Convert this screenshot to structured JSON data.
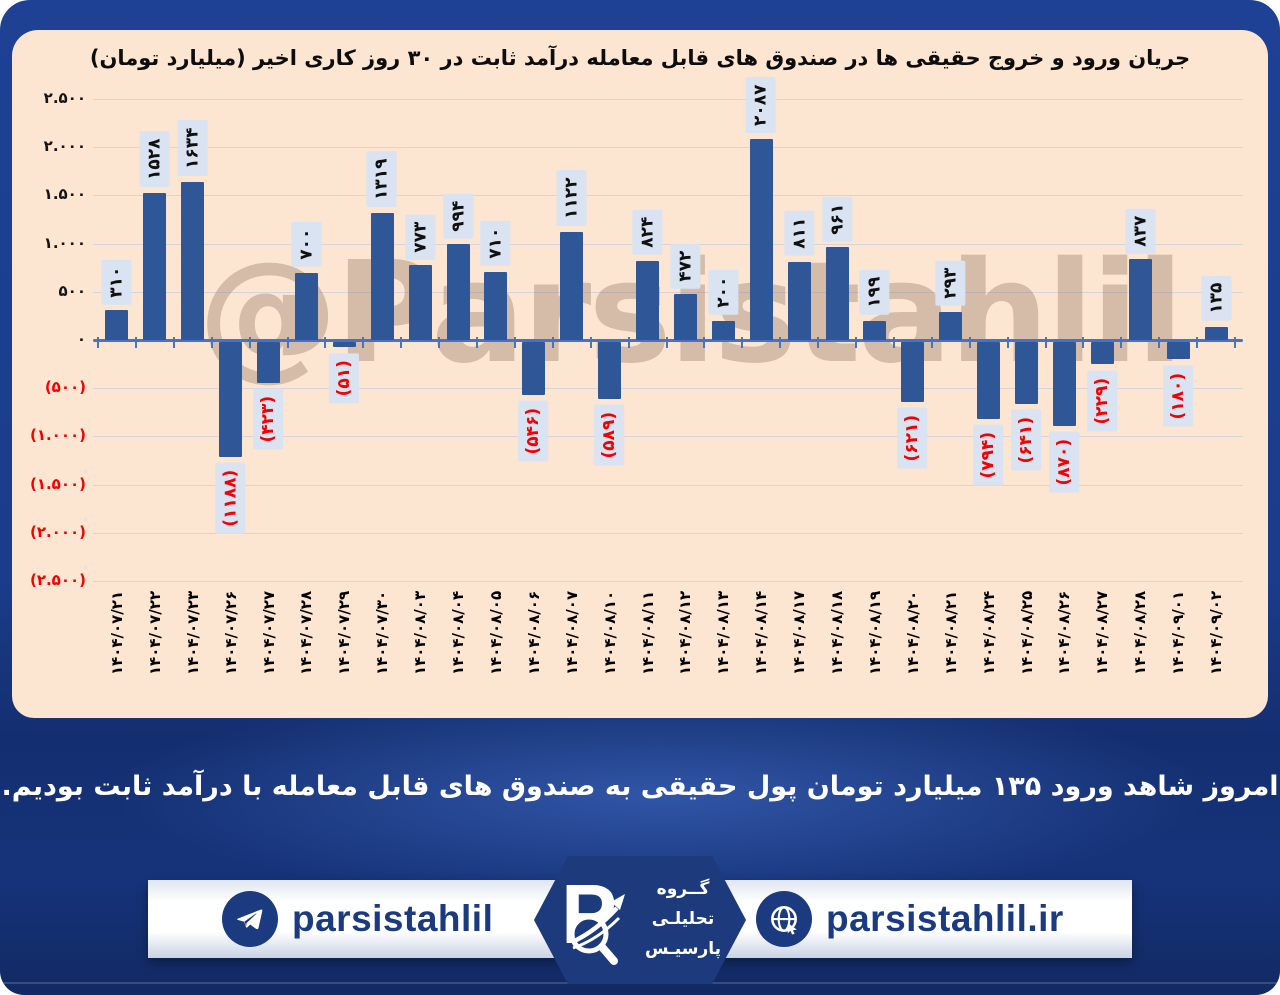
{
  "title": "جریان ورود و خروج حقیقی ها در صندوق های قابل معامله درآمد ثابت در ۳۰ روز کاری اخیر (میلیارد تومان)",
  "watermark": "@Parsistahlil",
  "chart_data": {
    "type": "bar",
    "title": "جریان ورود و خروج حقیقی ها در صندوق های قابل معامله درآمد ثابت در ۳۰ روز کاری اخیر (میلیارد تومان)",
    "unit": "میلیارد تومان",
    "categories": [
      "۱۴۰۴/۰۷/۲۱",
      "۱۴۰۴/۰۷/۲۲",
      "۱۴۰۴/۰۷/۲۳",
      "۱۴۰۴/۰۷/۲۶",
      "۱۴۰۴/۰۷/۲۷",
      "۱۴۰۴/۰۷/۲۸",
      "۱۴۰۴/۰۷/۲۹",
      "۱۴۰۴/۰۷/۳۰",
      "۱۴۰۴/۰۸/۰۳",
      "۱۴۰۴/۰۸/۰۴",
      "۱۴۰۴/۰۸/۰۵",
      "۱۴۰۴/۰۸/۰۶",
      "۱۴۰۴/۰۸/۰۷",
      "۱۴۰۴/۰۸/۱۰",
      "۱۴۰۴/۰۸/۱۱",
      "۱۴۰۴/۰۸/۱۲",
      "۱۴۰۴/۰۸/۱۳",
      "۱۴۰۴/۰۸/۱۴",
      "۱۴۰۴/۰۸/۱۷",
      "۱۴۰۴/۰۸/۱۸",
      "۱۴۰۴/۰۸/۱۹",
      "۱۴۰۴/۰۸/۲۰",
      "۱۴۰۴/۰۸/۲۱",
      "۱۴۰۴/۰۸/۲۴",
      "۱۴۰۴/۰۸/۲۵",
      "۱۴۰۴/۰۸/۲۶",
      "۱۴۰۴/۰۸/۲۷",
      "۱۴۰۴/۰۸/۲۸",
      "۱۴۰۴/۰۹/۰۱",
      "۱۴۰۴/۰۹/۰۲"
    ],
    "values": [
      310,
      1528,
      1634,
      -1188,
      -423,
      700,
      -51,
      1319,
      773,
      994,
      710,
      -546,
      1122,
      -589,
      824,
      472,
      200,
      2087,
      811,
      961,
      199,
      -621,
      293,
      -794,
      -641,
      -870,
      -229,
      837,
      -180,
      135
    ],
    "display_labels": [
      "۳۱۰",
      "۱۵۲۸",
      "۱۶۳۴",
      "(۱۱۸۸)",
      "(۴۲۳)",
      "۷۰۰",
      "(۵۱)",
      "۱۳۱۹",
      "۷۷۳",
      "۹۹۴",
      "۷۱۰",
      "(۵۴۶)",
      "۱۱۲۲",
      "(۵۸۹)",
      "۸۲۴",
      "۴۷۲",
      "۲۰۰",
      "۲۰۸۷",
      "۸۱۱",
      "۹۶۱",
      "۱۹۹",
      "(۶۲۱)",
      "۲۹۳",
      "(۷۹۴)",
      "(۶۴۱)",
      "(۸۷۰)",
      "(۲۲۹)",
      "۸۳۷",
      "(۱۸۰)",
      "۱۳۵"
    ],
    "y_ticks": [
      2500,
      2000,
      1500,
      1000,
      500,
      0,
      -500,
      -1000,
      -1500,
      -2000,
      -2500
    ],
    "y_tick_labels": [
      "۲.۵۰۰",
      "۲.۰۰۰",
      "۱.۵۰۰",
      "۱.۰۰۰",
      "۵۰۰",
      "۰",
      "(۵۰۰)",
      "(۱.۰۰۰)",
      "(۱.۵۰۰)",
      "(۲.۰۰۰)",
      "(۲.۵۰۰)"
    ],
    "ylim": [
      -2500,
      2500
    ],
    "grid": true,
    "legend": "none",
    "bar_color": "#2f5697",
    "positive_label_color": "#101010",
    "negative_label_color": "#f40000",
    "label_box_color": "#d9e3f2",
    "axis_color": "#4a72c4",
    "plot_background": "#fce5d1"
  },
  "message": "امروز شاهد ورود ۱۳۵ میلیارد تومان پول حقیقی به صندوق های قابل معامله با درآمد ثابت بودیم.",
  "footer": {
    "telegram_handle": "parsistahlil",
    "website": "parsistahlil.ir",
    "logo_letter": "P",
    "logo_text_line1": "گــروه",
    "logo_text_line2": "تحلیلـی",
    "logo_text_line3": "پارسیـس"
  }
}
